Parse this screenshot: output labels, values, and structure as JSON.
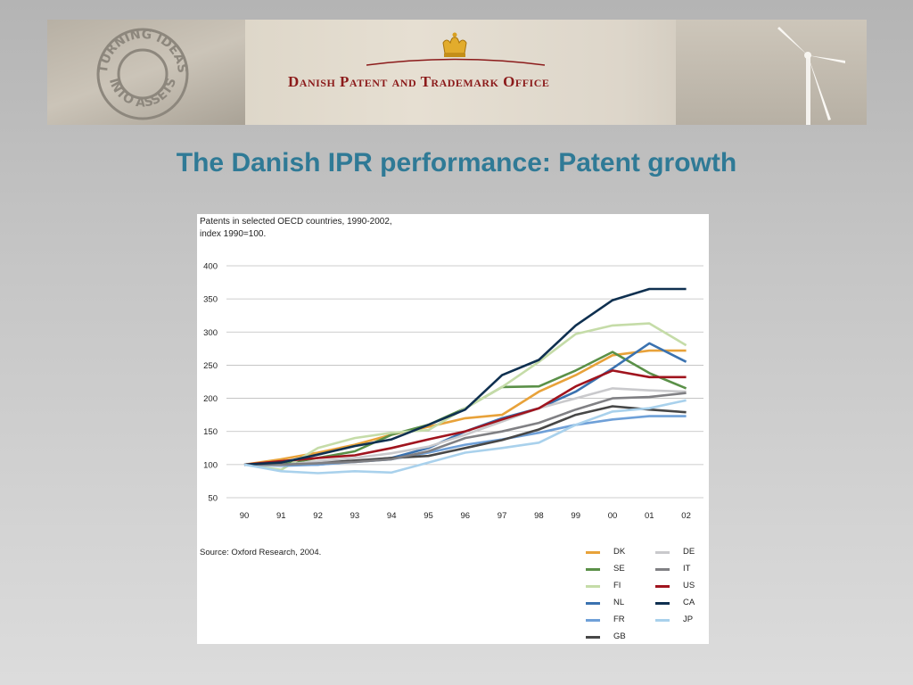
{
  "banner": {
    "stamp_text": "TURNING IDEAS INTO ASSETS",
    "office_name": "Danish Patent and Trademark Office"
  },
  "slide": {
    "title": "The Danish IPR performance: Patent growth"
  },
  "chart_data": {
    "type": "line",
    "title_lines": [
      "Patents in selected OECD countries, 1990-2002,",
      "index 1990=100."
    ],
    "source": "Source: Oxford Research, 2004.",
    "x": [
      "90",
      "91",
      "92",
      "93",
      "94",
      "95",
      "96",
      "97",
      "98",
      "99",
      "00",
      "01",
      "02"
    ],
    "yticks": [
      400,
      350,
      300,
      250,
      200,
      150,
      100,
      50
    ],
    "ylim": [
      50,
      400
    ],
    "grid": true,
    "legend_placement": "bottom-right",
    "series": [
      {
        "name": "DK",
        "color": "#e8a23a",
        "values": [
          100,
          108,
          118,
          130,
          145,
          157,
          170,
          175,
          210,
          235,
          265,
          272,
          272
        ]
      },
      {
        "name": "SE",
        "color": "#5a9048",
        "values": [
          100,
          100,
          110,
          120,
          145,
          160,
          185,
          217,
          218,
          242,
          270,
          238,
          215
        ]
      },
      {
        "name": "FI",
        "color": "#c5dca8",
        "values": [
          100,
          92,
          125,
          140,
          148,
          152,
          185,
          217,
          255,
          297,
          310,
          313,
          280
        ]
      },
      {
        "name": "NL",
        "color": "#3a72b0",
        "values": [
          100,
          100,
          100,
          105,
          110,
          125,
          150,
          170,
          185,
          210,
          245,
          283,
          255
        ]
      },
      {
        "name": "FR",
        "color": "#6fa0d8",
        "values": [
          100,
          98,
          100,
          104,
          108,
          118,
          130,
          138,
          148,
          160,
          168,
          173,
          173
        ]
      },
      {
        "name": "GB",
        "color": "#474747",
        "values": [
          100,
          100,
          103,
          106,
          110,
          113,
          125,
          137,
          153,
          175,
          188,
          183,
          179
        ]
      },
      {
        "name": "DE",
        "color": "#c9c9cc",
        "values": [
          100,
          99,
          105,
          110,
          117,
          127,
          145,
          165,
          185,
          200,
          215,
          212,
          210
        ]
      },
      {
        "name": "IT",
        "color": "#808084",
        "values": [
          100,
          100,
          102,
          104,
          108,
          120,
          140,
          150,
          163,
          183,
          200,
          202,
          208
        ]
      },
      {
        "name": "US",
        "color": "#a0141e",
        "values": [
          100,
          105,
          110,
          114,
          125,
          138,
          150,
          168,
          185,
          218,
          242,
          232,
          232
        ]
      },
      {
        "name": "CA",
        "color": "#0f3050",
        "values": [
          100,
          103,
          115,
          128,
          138,
          160,
          183,
          235,
          258,
          310,
          348,
          365,
          365
        ]
      },
      {
        "name": "JP",
        "color": "#a9d1ec",
        "values": [
          100,
          90,
          87,
          90,
          88,
          103,
          118,
          125,
          133,
          160,
          180,
          185,
          197
        ]
      }
    ]
  }
}
